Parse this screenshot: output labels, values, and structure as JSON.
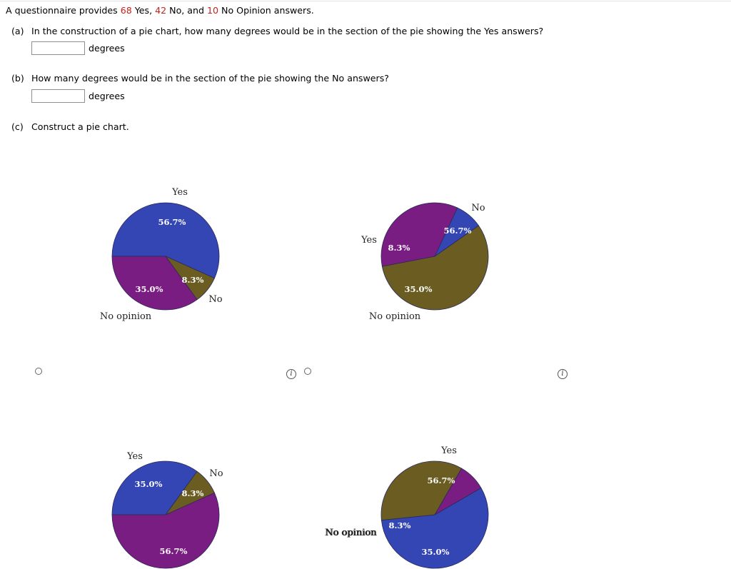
{
  "question": {
    "intro_part1": "A questionnaire provides ",
    "yes_count": "68",
    "intro_part2": " Yes, ",
    "no_count": "42",
    "intro_part3": " No, and ",
    "noop_count": "10",
    "intro_part4": " No Opinion answers."
  },
  "part_a": {
    "label": "(a)",
    "text": "In the construction of a pie chart, how many degrees would be in the section of the pie showing the Yes answers?",
    "input_value": "",
    "unit": "degrees"
  },
  "part_b": {
    "label": "(b)",
    "text": "How many degrees would be in the section of the pie showing the No answers?",
    "input_value": "",
    "unit": "degrees"
  },
  "part_c": {
    "label": "(c)",
    "text": "Construct a pie chart."
  },
  "colors": {
    "blue": "#3446b4",
    "purple": "#7a1d82",
    "olive": "#6b5c22"
  },
  "icons": {
    "info": "i"
  },
  "chart_data": [
    {
      "type": "pie",
      "slices": [
        {
          "label": "Yes",
          "value": 56.7,
          "display": "56.7%",
          "color": "#3446b4"
        },
        {
          "label": "No",
          "value": 8.3,
          "display": "8.3%",
          "color": "#6b5c22"
        },
        {
          "label": "No opinion",
          "value": 35.0,
          "display": "35.0%",
          "color": "#7a1d82"
        }
      ]
    },
    {
      "type": "pie",
      "slices": [
        {
          "label": "No",
          "value": 56.7,
          "display": "56.7%",
          "color": "#6b5c22"
        },
        {
          "label": "No opinion",
          "value": 35.0,
          "display": "35.0%",
          "color": "#7a1d82"
        },
        {
          "label": "Yes",
          "value": 8.3,
          "display": "8.3%",
          "color": "#3446b4"
        }
      ]
    },
    {
      "type": "pie",
      "slices": [
        {
          "label": "Yes",
          "value": 35.0,
          "display": "35.0%",
          "color": "#3446b4"
        },
        {
          "label": "No",
          "value": 8.3,
          "display": "8.3%",
          "color": "#6b5c22"
        },
        {
          "label": "No opinion",
          "value": 56.7,
          "display": "56.7%",
          "color": "#7a1d82"
        }
      ]
    },
    {
      "type": "pie",
      "slices": [
        {
          "label": "Yes",
          "value": 56.7,
          "display": "56.7%",
          "color": "#3446b4"
        },
        {
          "label": "No",
          "value": 35.0,
          "display": "35.0%",
          "color": "#6b5c22"
        },
        {
          "label": "No opinion",
          "value": 8.3,
          "display": "8.3%",
          "color": "#7a1d82"
        }
      ]
    }
  ]
}
